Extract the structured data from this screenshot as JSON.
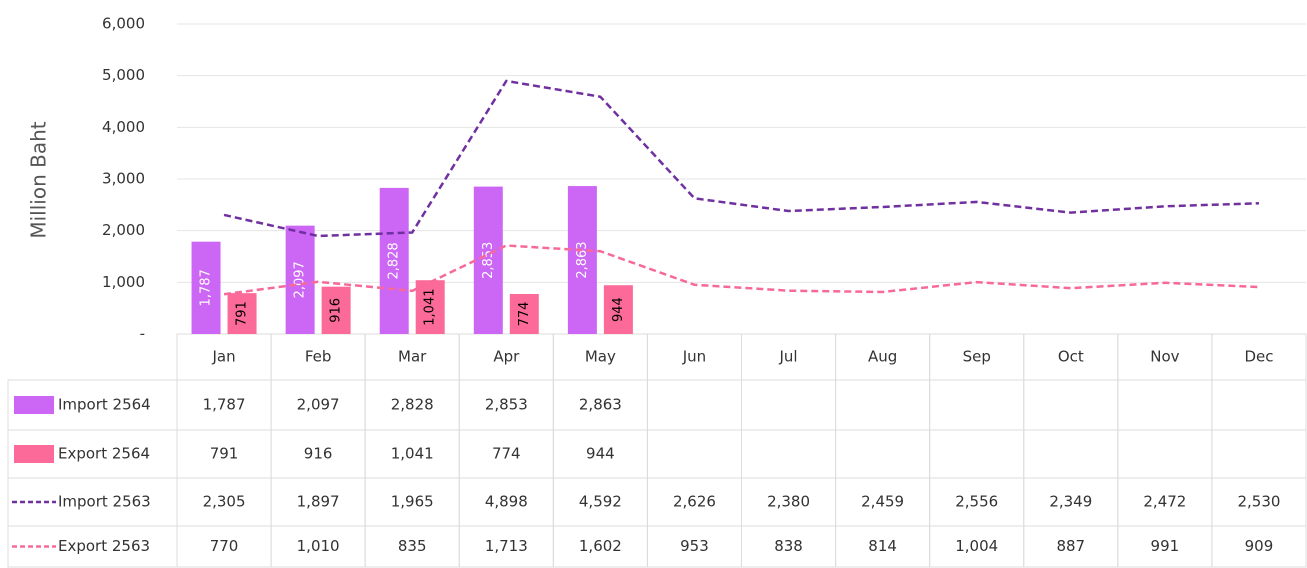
{
  "chart_data": {
    "type": "bar-line-table",
    "y_label": "Million Baht",
    "categories": [
      "Jan",
      "Feb",
      "Mar",
      "Apr",
      "May",
      "Jun",
      "Jul",
      "Aug",
      "Sep",
      "Oct",
      "Nov",
      "Dec"
    ],
    "ylim": [
      0,
      6000
    ],
    "yticks": [
      {
        "value": 0,
        "label": "-"
      },
      {
        "value": 1000,
        "label": "1,000"
      },
      {
        "value": 2000,
        "label": "2,000"
      },
      {
        "value": 3000,
        "label": "3,000"
      },
      {
        "value": 4000,
        "label": "4,000"
      },
      {
        "value": 5000,
        "label": "5,000"
      },
      {
        "value": 6000,
        "label": "6,000"
      }
    ],
    "grid": true,
    "series": [
      {
        "name": "Import 2564",
        "kind": "bar",
        "color": "#cc66f5",
        "values": [
          1787,
          2097,
          2828,
          2853,
          2863,
          null,
          null,
          null,
          null,
          null,
          null,
          null
        ],
        "value_labels": [
          "1,787",
          "2,097",
          "2,828",
          "2,853",
          "2,863",
          null,
          null,
          null,
          null,
          null,
          null,
          null
        ]
      },
      {
        "name": "Export 2564",
        "kind": "bar",
        "color": "#fb6a98",
        "values": [
          791,
          916,
          1041,
          774,
          944,
          null,
          null,
          null,
          null,
          null,
          null,
          null
        ],
        "value_labels": [
          "791",
          "916",
          "1,041",
          "774",
          "944",
          null,
          null,
          null,
          null,
          null,
          null,
          null
        ]
      },
      {
        "name": "Import 2563",
        "kind": "line",
        "color": "#7030a0",
        "values": [
          2305,
          1897,
          1965,
          4898,
          4592,
          2626,
          2380,
          2459,
          2556,
          2349,
          2472,
          2530
        ],
        "value_labels": [
          "2,305",
          "1,897",
          "1,965",
          "4,898",
          "4,592",
          "2,626",
          "2,380",
          "2,459",
          "2,556",
          "2,349",
          "2,472",
          "2,530"
        ]
      },
      {
        "name": "Export 2563",
        "kind": "line",
        "color": "#f7699a",
        "values": [
          770,
          1010,
          835,
          1713,
          1602,
          953,
          838,
          814,
          1004,
          887,
          991,
          909
        ],
        "value_labels": [
          "770",
          "1,010",
          "835",
          "1,713",
          "1,602",
          "953",
          "838",
          "814",
          "1,004",
          "887",
          "991",
          "909"
        ]
      }
    ]
  }
}
